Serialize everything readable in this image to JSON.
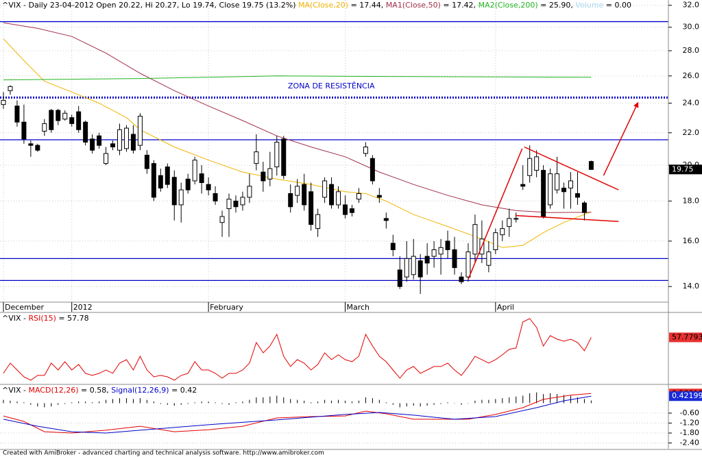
{
  "chart_data": [
    {
      "type": "candlestick",
      "legend_parts": [
        {
          "text": "^VIX - Daily 23-04-2012 Open 20.22, Hi 20.27, Lo 19.74, Close 19.75 (13.2%) ",
          "color": "#000000"
        },
        {
          "text": "MA(Close,20)",
          "color": "#f0b400"
        },
        {
          "text": " = 17.44, ",
          "color": "#000000"
        },
        {
          "text": "MA1(Close,50)",
          "color": "#a0304a"
        },
        {
          "text": " = 17.42, ",
          "color": "#000000"
        },
        {
          "text": "MA2(Close,200)",
          "color": "#22b422"
        },
        {
          "text": " = 25.90, ",
          "color": "#000000"
        },
        {
          "text": "Volume",
          "color": "#a8d8f0"
        },
        {
          "text": " = 0.00",
          "color": "#000000"
        }
      ],
      "annotation": "ZONA DE RESISTÊNCIA",
      "log_scale": true,
      "grid": true,
      "ylim": [
        13.0,
        32.5
      ],
      "yticks": [
        {
          "value": 14,
          "label": "14.0"
        },
        {
          "value": 16,
          "label": "16.0"
        },
        {
          "value": 18,
          "label": "18.0"
        },
        {
          "value": 20,
          "label": "20.0"
        },
        {
          "value": 22,
          "label": "22.0"
        },
        {
          "value": 24,
          "label": "24.0"
        },
        {
          "value": 26,
          "label": "26.0"
        },
        {
          "value": 28,
          "label": "28.0"
        },
        {
          "value": 30,
          "label": "30.0"
        },
        {
          "value": 32,
          "label": "32.0"
        }
      ],
      "categories": [
        "December",
        null,
        null,
        null,
        null,
        null,
        null,
        null,
        null,
        null,
        "2012",
        null,
        null,
        null,
        null,
        null,
        null,
        null,
        null,
        null,
        null,
        null,
        null,
        null,
        null,
        null,
        null,
        null,
        null,
        null,
        "February",
        null,
        null,
        null,
        null,
        null,
        null,
        null,
        null,
        null,
        null,
        null,
        null,
        null,
        null,
        null,
        null,
        null,
        null,
        null,
        "March",
        null,
        null,
        null,
        null,
        null,
        null,
        null,
        null,
        null,
        null,
        null,
        null,
        null,
        null,
        null,
        null,
        null,
        null,
        null,
        null,
        null,
        "April",
        null,
        null,
        null,
        null,
        null,
        null,
        null,
        null,
        null,
        null,
        null,
        null,
        null,
        null
      ],
      "open": [
        23.9,
        24.9,
        23.8,
        22.7,
        21.3,
        21.2,
        22.1,
        23.5,
        23.5,
        22.9,
        23.0,
        23.4,
        22.7,
        21.6,
        21.8,
        20.1,
        21.3,
        20.9,
        21.0,
        21.9,
        21.2,
        20.6,
        20.1,
        19.4,
        19.9,
        19.3,
        17.8,
        19.2,
        19.1,
        19.5,
        18.9,
        18.4,
        16.9,
        17.6,
        18.0,
        17.8,
        18.2,
        20.1,
        19.6,
        19.2,
        19.9,
        21.6,
        18.4,
        18.3,
        18.9,
        18.5,
        16.6,
        18.2,
        18.9,
        17.8,
        17.8,
        17.6,
        18.1,
        20.7,
        20.4,
        18.3,
        17.1,
        15.9,
        14.7,
        14.4,
        14.5,
        15.1,
        15.3,
        15.3,
        15.4,
        16.0,
        15.6,
        14.4,
        14.4,
        15.4,
        15.4,
        14.9,
        15.6,
        16.3,
        16.7,
        17.1,
        18.9,
        19.4,
        19.7,
        19.7,
        17.8,
        18.6,
        18.7,
        18.7,
        18.4,
        17.9,
        20.22
      ],
      "high": [
        24.8,
        25.3,
        24.2,
        23.9,
        21.5,
        21.3,
        22.9,
        23.6,
        23.6,
        23.5,
        23.2,
        23.8,
        22.8,
        21.9,
        22.0,
        21.1,
        21.5,
        22.6,
        22.5,
        22.5,
        23.3,
        20.9,
        20.3,
        19.8,
        20.1,
        19.7,
        19.0,
        19.5,
        20.5,
        20.0,
        19.3,
        18.8,
        17.5,
        18.4,
        18.3,
        18.5,
        19.5,
        21.9,
        20.2,
        20.8,
        21.8,
        21.8,
        18.9,
        19.2,
        19.5,
        19.0,
        17.6,
        19.3,
        19.3,
        18.8,
        18.3,
        17.8,
        18.7,
        21.4,
        20.6,
        18.7,
        17.4,
        16.3,
        15.3,
        16.0,
        16.1,
        15.4,
        15.9,
        16.0,
        16.1,
        16.5,
        16.2,
        14.6,
        15.9,
        17.3,
        17.0,
        16.0,
        16.6,
        17.0,
        17.6,
        17.4,
        20.0,
        21.2,
        20.9,
        20.0,
        19.8,
        20.5,
        19.0,
        19.6,
        19.6,
        18.0,
        20.27
      ],
      "low": [
        23.6,
        24.6,
        22.4,
        21.3,
        20.5,
        20.8,
        21.8,
        22.0,
        22.5,
        22.8,
        22.4,
        22.0,
        21.2,
        20.7,
        21.0,
        20.0,
        20.9,
        20.6,
        20.8,
        20.7,
        20.9,
        19.5,
        18.0,
        18.5,
        18.7,
        17.0,
        16.9,
        18.4,
        18.9,
        18.4,
        18.3,
        17.8,
        16.2,
        16.2,
        17.4,
        17.5,
        17.9,
        19.7,
        18.5,
        18.8,
        19.4,
        19.2,
        17.4,
        17.9,
        17.5,
        16.5,
        16.2,
        17.9,
        17.6,
        17.6,
        17.1,
        17.2,
        17.9,
        20.5,
        18.9,
        17.9,
        16.6,
        15.3,
        13.9,
        14.2,
        14.3,
        13.7,
        14.5,
        14.8,
        14.5,
        15.2,
        14.5,
        14.1,
        14.2,
        15.0,
        15.0,
        14.6,
        15.4,
        16.0,
        16.2,
        16.9,
        18.6,
        19.0,
        19.3,
        17.1,
        17.6,
        18.4,
        17.6,
        17.6,
        17.8,
        17.0,
        19.74
      ],
      "close": [
        24.2,
        25.2,
        22.7,
        21.6,
        21.2,
        20.9,
        22.6,
        22.2,
        22.8,
        23.3,
        22.6,
        22.2,
        21.4,
        20.9,
        21.2,
        20.7,
        21.1,
        22.2,
        22.3,
        20.9,
        23.1,
        19.8,
        18.2,
        18.7,
        18.9,
        17.8,
        18.6,
        18.6,
        20.3,
        19.0,
        18.6,
        18.0,
        17.2,
        18.1,
        17.7,
        18.2,
        18.8,
        20.8,
        19.1,
        19.8,
        21.4,
        19.4,
        17.7,
        18.8,
        17.8,
        16.8,
        17.3,
        19.1,
        17.8,
        18.5,
        17.3,
        17.4,
        18.4,
        21.1,
        19.1,
        18.2,
        17.0,
        15.6,
        14.0,
        15.2,
        15.3,
        14.4,
        15.0,
        15.6,
        15.7,
        15.6,
        14.8,
        14.2,
        15.5,
        16.8,
        16.1,
        15.5,
        16.4,
        16.6,
        17.1,
        17.1,
        18.8,
        20.4,
        20.5,
        17.2,
        19.5,
        19.5,
        18.5,
        19.1,
        18.2,
        17.4,
        19.75
      ],
      "series": [
        {
          "name": "MA(Close,20)",
          "color": "#f0b400",
          "x": [
            0,
            3,
            6,
            10,
            14,
            18,
            20,
            25,
            30,
            35,
            40,
            45,
            50,
            53,
            56,
            60,
            65,
            70,
            73,
            76,
            79,
            82,
            86
          ],
          "values": [
            29.0,
            27.2,
            25.6,
            24.8,
            24.0,
            23.0,
            22.2,
            21.1,
            20.3,
            19.6,
            19.2,
            18.9,
            18.5,
            18.4,
            18.0,
            17.3,
            16.7,
            16.1,
            15.7,
            15.8,
            16.4,
            16.9,
            17.44
          ]
        },
        {
          "name": "MA1(Close,50)",
          "color": "#a0304a",
          "x": [
            0,
            5,
            10,
            15,
            20,
            25,
            30,
            35,
            40,
            45,
            50,
            55,
            60,
            65,
            70,
            75,
            80,
            86
          ],
          "values": [
            30.4,
            29.9,
            29.2,
            27.8,
            26.2,
            24.9,
            23.8,
            22.8,
            21.8,
            21.1,
            20.5,
            19.6,
            18.9,
            18.3,
            17.8,
            17.5,
            17.4,
            17.42
          ]
        },
        {
          "name": "MA2(Close,200)",
          "color": "#22b422",
          "x": [
            0,
            20,
            40,
            60,
            86
          ],
          "values": [
            25.7,
            25.8,
            26.0,
            25.95,
            25.9
          ]
        }
      ],
      "hlines": [
        {
          "value": 30.5,
          "color": "#0000c8",
          "style": "solid"
        },
        {
          "value": 24.4,
          "color": "#0000c8",
          "style": "dotted"
        },
        {
          "value": 21.55,
          "color": "#0000c8",
          "style": "solid"
        },
        {
          "value": 15.2,
          "color": "#0000c8",
          "style": "solid"
        },
        {
          "value": 14.25,
          "color": "#0000c8",
          "style": "solid"
        }
      ],
      "trendlines": [
        {
          "x": [
            68,
            75.9
          ],
          "y": [
            14.3,
            21.0
          ],
          "color": "#e00000",
          "arrow": false
        },
        {
          "x": [
            76.2,
            90
          ],
          "y": [
            21.1,
            18.6
          ],
          "color": "#e00000",
          "arrow": false
        },
        {
          "x": [
            74.9,
            90
          ],
          "y": [
            17.25,
            16.95
          ],
          "color": "#e00000",
          "arrow": false
        },
        {
          "x": [
            87.8,
            92.8
          ],
          "y": [
            19.4,
            24.0
          ],
          "color": "#e00000",
          "arrow": true
        }
      ]
    },
    {
      "type": "line",
      "legend_parts": [
        {
          "text": "^VIX - ",
          "color": "#000000"
        },
        {
          "text": "RSI(15)",
          "color": "#e00000"
        },
        {
          "text": " = 57.78",
          "color": "#000000"
        }
      ],
      "ylim": [
        22,
        76
      ],
      "series": [
        {
          "name": "RSI(15)",
          "color": "#e00000",
          "label_bg": "#e83030",
          "values": [
            30.0,
            37.9,
            32.6,
            27.3,
            24.7,
            28.4,
            28.4,
            37.9,
            32.6,
            39.0,
            32.6,
            36.9,
            30.0,
            28.4,
            30.0,
            32.6,
            30.0,
            37.9,
            40.6,
            32.6,
            43.2,
            32.6,
            27.3,
            28.4,
            27.3,
            24.7,
            28.4,
            30.0,
            39.0,
            32.6,
            32.6,
            30.0,
            26.3,
            30.0,
            30.0,
            32.6,
            37.9,
            53.8,
            45.8,
            51.1,
            60.1,
            43.2,
            35.3,
            40.6,
            37.9,
            32.6,
            36.9,
            45.8,
            40.6,
            44.3,
            40.6,
            39.0,
            43.2,
            60.1,
            51.1,
            43.2,
            39.0,
            32.6,
            26.3,
            32.6,
            35.3,
            30.0,
            32.6,
            35.3,
            35.3,
            37.9,
            32.6,
            28.4,
            35.3,
            43.2,
            40.6,
            37.9,
            40.6,
            44.3,
            48.5,
            49.6,
            69.7,
            72.3,
            65.4,
            51.1,
            59.1,
            56.4,
            54.8,
            56.4,
            53.8,
            47.4,
            57.7793
          ]
        }
      ]
    },
    {
      "type": "macd",
      "legend_parts": [
        {
          "text": "^VIX - ",
          "color": "#000000"
        },
        {
          "text": "MACD(12,26)",
          "color": "#e00000"
        },
        {
          "text": " = 0.58, ",
          "color": "#000000"
        },
        {
          "text": "Signal(12,26,9)",
          "color": "#0000c8"
        },
        {
          "text": " = 0.42",
          "color": "#000000"
        }
      ],
      "ylim": [
        -2.75,
        1.05
      ],
      "grid": true,
      "yticks": [
        {
          "value": -0.6,
          "label": "-0.60"
        },
        {
          "value": -1.2,
          "label": "-1.20"
        },
        {
          "value": -1.8,
          "label": "-1.80"
        },
        {
          "value": -2.4,
          "label": "-2.40"
        }
      ],
      "series": [
        {
          "name": "MACD(12,26)",
          "color": "#e00000",
          "label_bg": "#e83030",
          "x": [
            0,
            3,
            6,
            10,
            15,
            20,
            25,
            30,
            35,
            40,
            45,
            50,
            53,
            56,
            60,
            65,
            68,
            72,
            76,
            79,
            83,
            86
          ],
          "values": [
            -0.77,
            -1.1,
            -1.72,
            -1.8,
            -1.63,
            -1.39,
            -1.72,
            -1.6,
            -1.39,
            -0.89,
            -0.81,
            -0.77,
            -0.48,
            -0.64,
            -0.97,
            -0.97,
            -0.97,
            -0.68,
            -0.27,
            0.23,
            0.48,
            0.583103
          ]
        },
        {
          "name": "Signal(12,26,9)",
          "color": "#0000c8",
          "label_bg": "#1a2ad8",
          "x": [
            0,
            5,
            10,
            15,
            20,
            30,
            40,
            50,
            55,
            60,
            66,
            72,
            78,
            82,
            86
          ],
          "values": [
            -0.97,
            -1.39,
            -1.72,
            -1.8,
            -1.63,
            -1.3,
            -1.01,
            -0.68,
            -0.56,
            -0.72,
            -0.97,
            -0.81,
            -0.27,
            0.14,
            0.421996
          ]
        }
      ],
      "histogram": [
        0.2,
        0.15,
        0.1,
        0.05,
        -0.1,
        -0.2,
        -0.25,
        -0.2,
        -0.1,
        -0.05,
        0.05,
        0.1,
        0.1,
        0.05,
        0.1,
        0.2,
        0.25,
        0.3,
        0.3,
        0.25,
        0.3,
        0.2,
        0.1,
        -0.05,
        -0.1,
        -0.15,
        -0.1,
        -0.05,
        0.05,
        0.1,
        0.1,
        0.05,
        -0.05,
        -0.1,
        0.05,
        0.1,
        0.2,
        0.35,
        0.35,
        0.4,
        0.45,
        0.35,
        0.25,
        0.2,
        0.15,
        0.05,
        0.1,
        0.2,
        0.15,
        0.2,
        0.15,
        0.1,
        0.15,
        0.35,
        0.3,
        0.2,
        0.05,
        -0.1,
        -0.25,
        -0.2,
        -0.15,
        -0.2,
        -0.15,
        -0.1,
        -0.05,
        0.05,
        0.0,
        -0.1,
        0.0,
        0.15,
        0.2,
        0.2,
        0.25,
        0.3,
        0.35,
        0.4,
        0.45,
        0.6,
        0.65,
        0.55,
        0.6,
        0.55,
        0.5,
        0.45,
        0.35,
        0.25,
        0.16
      ]
    }
  ],
  "footer": "Created with AmiBroker - advanced charting and technical analysis software. http://www.amibroker.com"
}
